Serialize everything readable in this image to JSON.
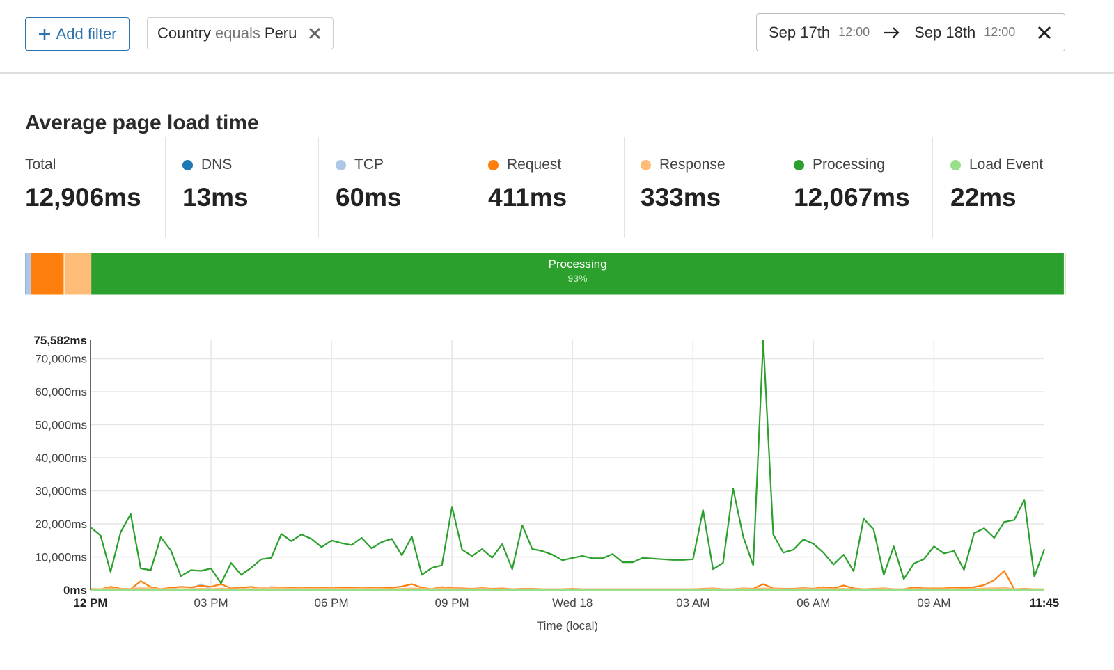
{
  "filters": {
    "add_button": "Add filter",
    "active": [
      {
        "field": "Country",
        "operator": "equals",
        "value": "Peru"
      }
    ]
  },
  "date_range": {
    "start": "Sep 17th",
    "start_time": "12:00",
    "end": "Sep 18th",
    "end_time": "12:00"
  },
  "metrics": {
    "title": "Average page load time",
    "items": [
      {
        "label": "Total",
        "value": 12906,
        "value_label": "12,906ms"
      },
      {
        "label": "DNS",
        "value": 13,
        "value_label": "13ms",
        "color": "#1f77b4"
      },
      {
        "label": "TCP",
        "value": 60,
        "value_label": "60ms",
        "color": "#aec7e8"
      },
      {
        "label": "Request",
        "value": 411,
        "value_label": "411ms",
        "color": "#ff7f0e"
      },
      {
        "label": "Response",
        "value": 333,
        "value_label": "333ms",
        "color": "#ffbb78"
      },
      {
        "label": "Processing",
        "value": 12067,
        "value_label": "12,067ms",
        "color": "#2ca02c"
      },
      {
        "label": "Load Event",
        "value": 22,
        "value_label": "22ms",
        "color": "#98df8a"
      }
    ],
    "bar_annotation": {
      "value": 93,
      "label": "93%"
    }
  },
  "chart_data": {
    "type": "line",
    "xlabel": "Time (local)",
    "x": [
      0,
      0.25,
      0.5,
      0.75,
      1,
      1.25,
      1.5,
      1.75,
      2,
      2.25,
      2.5,
      2.75,
      3,
      3.25,
      3.5,
      3.75,
      4,
      4.25,
      4.5,
      4.75,
      5,
      5.25,
      5.5,
      5.75,
      6,
      6.25,
      6.5,
      6.75,
      7,
      7.25,
      7.5,
      7.75,
      8,
      8.25,
      8.5,
      8.75,
      9,
      9.25,
      9.5,
      9.75,
      10,
      10.25,
      10.5,
      10.75,
      11,
      11.25,
      11.5,
      11.75,
      12,
      12.25,
      12.5,
      12.75,
      13,
      13.25,
      13.5,
      13.75,
      14,
      14.25,
      14.5,
      14.75,
      15,
      15.25,
      15.5,
      15.75,
      16,
      16.25,
      16.5,
      16.75,
      17,
      17.25,
      17.5,
      17.75,
      18,
      18.25,
      18.5,
      18.75,
      19,
      19.25,
      19.5,
      19.75,
      20,
      20.25,
      20.5,
      20.75,
      21,
      21.25,
      21.5,
      21.75,
      22,
      22.25,
      22.5,
      22.75,
      23,
      23.25,
      23.5,
      23.75
    ],
    "xlim": [
      0,
      23.75
    ],
    "xticks": [
      {
        "value": 0,
        "label": "12 PM"
      },
      {
        "value": 3,
        "label": "03 PM"
      },
      {
        "value": 6,
        "label": "06 PM"
      },
      {
        "value": 9,
        "label": "09 PM"
      },
      {
        "value": 12,
        "label": "Wed 18"
      },
      {
        "value": 15,
        "label": "03 AM"
      },
      {
        "value": 18,
        "label": "06 AM"
      },
      {
        "value": 21,
        "label": "09 AM"
      },
      {
        "value": 23.75,
        "label": "11:45"
      }
    ],
    "ylim": [
      0,
      75582
    ],
    "yticks": [
      {
        "value": 0,
        "label": "0ms"
      },
      {
        "value": 10000,
        "label": "10,000ms"
      },
      {
        "value": 20000,
        "label": "20,000ms"
      },
      {
        "value": 30000,
        "label": "30,000ms"
      },
      {
        "value": 40000,
        "label": "40,000ms"
      },
      {
        "value": 50000,
        "label": "50,000ms"
      },
      {
        "value": 60000,
        "label": "60,000ms"
      },
      {
        "value": 70000,
        "label": "70,000ms"
      },
      {
        "value": 75582,
        "label": "75,582ms"
      }
    ],
    "grid": true,
    "series": [
      {
        "name": "DNS",
        "color": "#1f77b4",
        "values": [
          13,
          13,
          13,
          13,
          13,
          13,
          13,
          13,
          13,
          13,
          13,
          13,
          13,
          13,
          13,
          13,
          13,
          13,
          13,
          13,
          13,
          13,
          13,
          13,
          13,
          13,
          13,
          13,
          13,
          13,
          13,
          13,
          13,
          13,
          13,
          13,
          13,
          13,
          13,
          13,
          13,
          13,
          13,
          13,
          13,
          13,
          13,
          13,
          13,
          13,
          13,
          13,
          13,
          13,
          13,
          13,
          13,
          13,
          13,
          13,
          13,
          13,
          13,
          13,
          13,
          13,
          13,
          13,
          13,
          13,
          13,
          13,
          13,
          13,
          13,
          13,
          13,
          13,
          13,
          13,
          13,
          13,
          13,
          13,
          13,
          13,
          13,
          13,
          13,
          13,
          13,
          13,
          13,
          13,
          13,
          13
        ]
      },
      {
        "name": "TCP",
        "color": "#aec7e8",
        "values": [
          50,
          40,
          60,
          50,
          40,
          80,
          60,
          50,
          60,
          70,
          300,
          1800,
          200,
          60,
          50,
          40,
          60,
          50,
          900,
          60,
          50,
          50,
          50,
          50,
          50,
          50,
          50,
          50,
          50,
          50,
          50,
          50,
          50,
          50,
          50,
          50,
          50,
          50,
          50,
          50,
          50,
          50,
          50,
          50,
          50,
          50,
          50,
          50,
          50,
          50,
          50,
          50,
          50,
          50,
          50,
          50,
          50,
          50,
          50,
          50,
          50,
          50,
          50,
          50,
          50,
          50,
          50,
          50,
          50,
          50,
          50,
          50,
          50,
          50,
          700,
          50,
          50,
          50,
          50,
          50,
          50,
          50,
          50,
          50,
          50,
          50,
          50,
          50,
          600,
          50,
          300,
          900,
          50,
          50,
          50,
          50
        ]
      },
      {
        "name": "Request",
        "color": "#ff7f0e",
        "values": [
          300,
          200,
          1000,
          400,
          300,
          2700,
          900,
          300,
          700,
          1000,
          800,
          1300,
          1000,
          1800,
          500,
          700,
          1000,
          500,
          900,
          800,
          700,
          700,
          600,
          600,
          700,
          700,
          700,
          800,
          600,
          600,
          700,
          1100,
          1800,
          700,
          300,
          900,
          600,
          500,
          400,
          600,
          400,
          500,
          300,
          400,
          400,
          300,
          300,
          300,
          400,
          300,
          300,
          300,
          300,
          300,
          300,
          300,
          300,
          300,
          300,
          300,
          300,
          400,
          500,
          300,
          300,
          500,
          400,
          1800,
          500,
          400,
          400,
          600,
          400,
          900,
          500,
          1400,
          500,
          300,
          400,
          500,
          300,
          300,
          800,
          500,
          500,
          500,
          800,
          600,
          900,
          1500,
          3000,
          5800,
          300,
          400,
          300,
          300
        ]
      },
      {
        "name": "Response",
        "color": "#ffbb78",
        "values": [
          400,
          300,
          500,
          300,
          400,
          600,
          500,
          300,
          400,
          300,
          300,
          400,
          300,
          500,
          300,
          400,
          300,
          700,
          600,
          500,
          400,
          500,
          400,
          400,
          500,
          400,
          400,
          500,
          400,
          400,
          300,
          400,
          500,
          400,
          300,
          500,
          400,
          300,
          300,
          400,
          300,
          300,
          300,
          300,
          300,
          300,
          300,
          300,
          300,
          300,
          300,
          300,
          300,
          300,
          300,
          300,
          300,
          300,
          300,
          300,
          300,
          300,
          400,
          300,
          300,
          400,
          300,
          500,
          400,
          300,
          300,
          400,
          300,
          500,
          300,
          400,
          300,
          300,
          300,
          400,
          300,
          300,
          400,
          300,
          300,
          300,
          400,
          300,
          400,
          500,
          600,
          700,
          300,
          300,
          300,
          300
        ]
      },
      {
        "name": "Processing",
        "color": "#2ca02c",
        "values": [
          19000,
          16500,
          5500,
          17500,
          23000,
          6500,
          6000,
          16000,
          12000,
          4200,
          6000,
          5800,
          6500,
          2000,
          8200,
          4600,
          6700,
          9300,
          9700,
          17000,
          14800,
          16800,
          15500,
          13000,
          15000,
          14200,
          13600,
          15800,
          12600,
          14500,
          15500,
          10500,
          16200,
          4600,
          6700,
          7500,
          25200,
          12200,
          10300,
          12400,
          9800,
          13900,
          6300,
          19600,
          12400,
          11800,
          10700,
          9000,
          9700,
          10300,
          9600,
          9600,
          10900,
          8400,
          8400,
          9700,
          9500,
          9300,
          9100,
          9100,
          9300,
          24200,
          6300,
          8200,
          30700,
          16200,
          7500,
          75582,
          16800,
          11300,
          12200,
          15300,
          14000,
          11300,
          7700,
          10700,
          5700,
          21600,
          18300,
          4600,
          13200,
          3300,
          8000,
          9300,
          13200,
          11100,
          11800,
          6100,
          17200,
          18700,
          15800,
          20600,
          21200,
          27300,
          4000,
          12400
        ]
      },
      {
        "name": "Load Event",
        "color": "#98df8a",
        "values": [
          22,
          22,
          22,
          22,
          22,
          22,
          22,
          22,
          22,
          22,
          22,
          22,
          22,
          22,
          22,
          22,
          22,
          22,
          22,
          22,
          22,
          22,
          22,
          22,
          22,
          22,
          22,
          22,
          22,
          22,
          22,
          22,
          22,
          22,
          22,
          22,
          22,
          22,
          22,
          22,
          22,
          22,
          22,
          22,
          22,
          22,
          22,
          22,
          22,
          22,
          22,
          22,
          22,
          22,
          22,
          22,
          22,
          22,
          22,
          22,
          22,
          22,
          22,
          22,
          22,
          22,
          22,
          22,
          22,
          22,
          22,
          22,
          22,
          22,
          22,
          22,
          22,
          22,
          22,
          22,
          22,
          22,
          22,
          22,
          22,
          22,
          22,
          22,
          22,
          22,
          22,
          22,
          22,
          22,
          22,
          22
        ]
      }
    ]
  }
}
